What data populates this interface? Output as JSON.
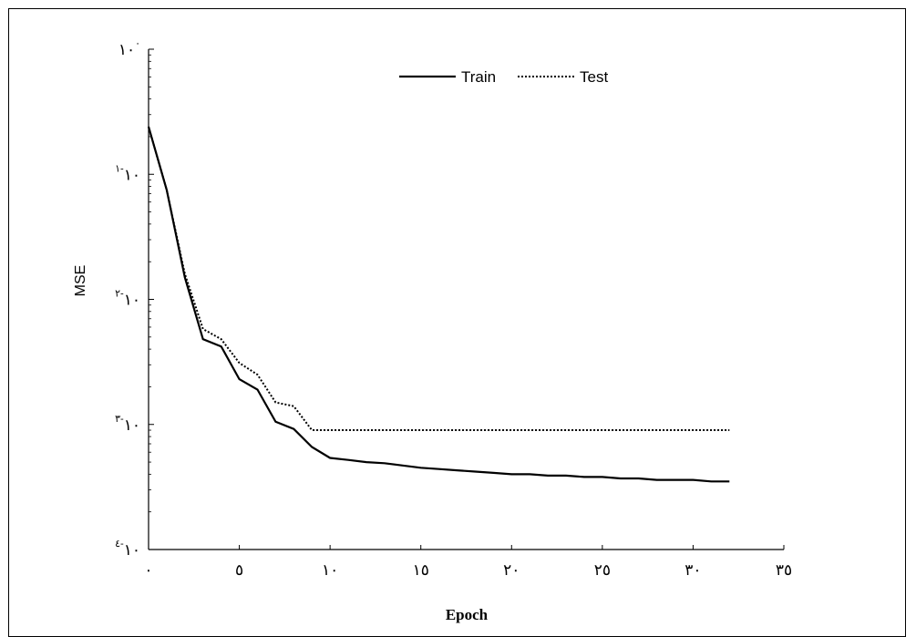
{
  "chart_data": {
    "type": "line",
    "xlabel": "Epoch",
    "ylabel": "MSE",
    "xlim": [
      0,
      35
    ],
    "ylim": [
      0.0001,
      1
    ],
    "yscale": "log",
    "x_ticks": [
      {
        "value": 0,
        "label": "٠"
      },
      {
        "value": 5,
        "label": "٥"
      },
      {
        "value": 10,
        "label": "١٠"
      },
      {
        "value": 15,
        "label": "١٥"
      },
      {
        "value": 20,
        "label": "٢٠"
      },
      {
        "value": 25,
        "label": "٢٥"
      },
      {
        "value": 30,
        "label": "٣٠"
      },
      {
        "value": 35,
        "label": "٣٥"
      }
    ],
    "y_ticks": [
      {
        "value": 1,
        "base": "١٠",
        "exp": "٠"
      },
      {
        "value": 0.1,
        "base": "١٠",
        "exp": "-١"
      },
      {
        "value": 0.01,
        "base": "١٠",
        "exp": "-٢"
      },
      {
        "value": 0.001,
        "base": "١٠",
        "exp": "-٣"
      },
      {
        "value": 0.0001,
        "base": "١٠",
        "exp": "-٤"
      }
    ],
    "legend": "top-center",
    "grid": false,
    "series": [
      {
        "name": "Train",
        "style": "solid",
        "color": "#000000",
        "x": [
          0,
          1,
          2,
          3,
          4,
          5,
          6,
          7,
          8,
          9,
          10,
          11,
          12,
          13,
          14,
          15,
          16,
          17,
          18,
          19,
          20,
          21,
          22,
          23,
          24,
          25,
          26,
          27,
          28,
          29,
          30,
          31,
          32
        ],
        "y": [
          0.24,
          0.075,
          0.015,
          0.0048,
          0.0042,
          0.0023,
          0.0019,
          0.00105,
          0.00092,
          0.00066,
          0.00054,
          0.00052,
          0.0005,
          0.00049,
          0.00047,
          0.00045,
          0.00044,
          0.00043,
          0.00042,
          0.00041,
          0.0004,
          0.0004,
          0.00039,
          0.00039,
          0.00038,
          0.00038,
          0.00037,
          0.00037,
          0.00036,
          0.00036,
          0.00036,
          0.00035,
          0.00035
        ]
      },
      {
        "name": "Test",
        "style": "dotted",
        "color": "#000000",
        "x": [
          0,
          1,
          2,
          3,
          4,
          5,
          6,
          7,
          8,
          9,
          10,
          11,
          12,
          13,
          14,
          15,
          16,
          17,
          18,
          19,
          20,
          21,
          22,
          23,
          24,
          25,
          26,
          27,
          28,
          29,
          30,
          31,
          32
        ],
        "y": [
          0.24,
          0.075,
          0.016,
          0.0058,
          0.0048,
          0.0031,
          0.0025,
          0.0015,
          0.0014,
          0.0009,
          0.0009,
          0.0009,
          0.0009,
          0.0009,
          0.0009,
          0.0009,
          0.0009,
          0.0009,
          0.0009,
          0.0009,
          0.0009,
          0.0009,
          0.0009,
          0.0009,
          0.0009,
          0.0009,
          0.0009,
          0.0009,
          0.0009,
          0.0009,
          0.0009,
          0.0009,
          0.0009
        ]
      }
    ]
  }
}
